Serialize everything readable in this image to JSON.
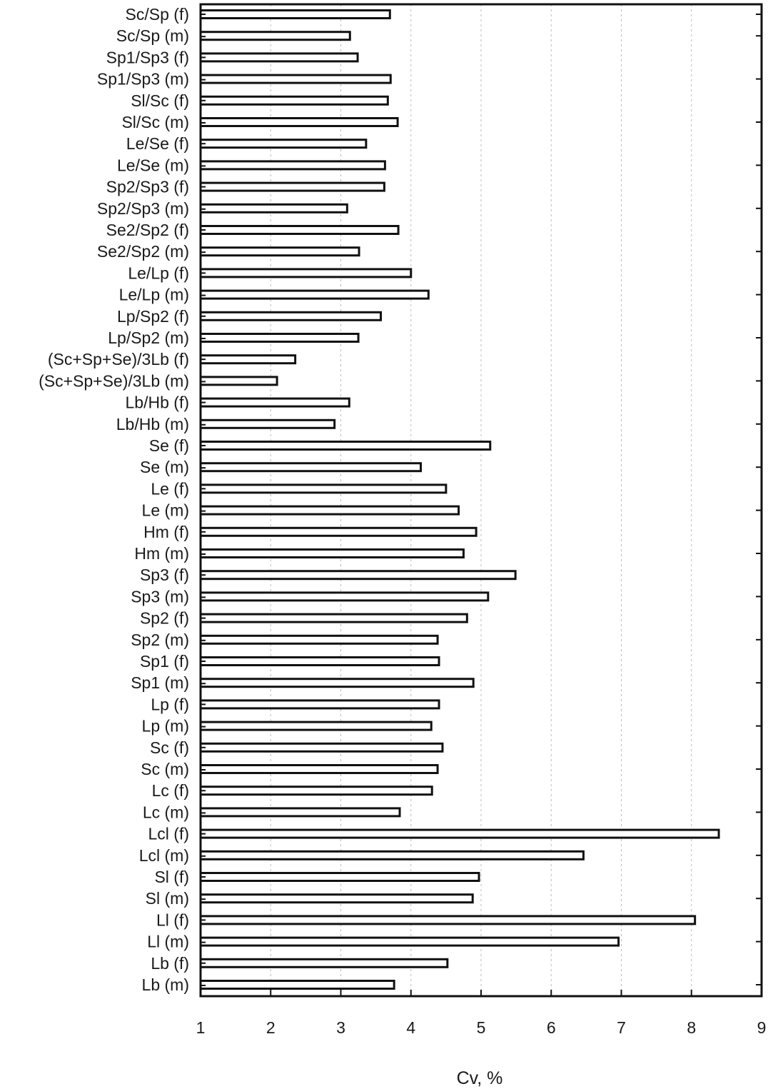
{
  "chart_data": {
    "type": "bar",
    "orientation": "horizontal",
    "xlabel": "Cv, %",
    "ylabel": "",
    "title": "",
    "xlim": [
      1,
      9
    ],
    "xticks": [
      1,
      2,
      3,
      4,
      5,
      6,
      7,
      8,
      9
    ],
    "grid": "vertical dotted",
    "legend": "none",
    "colors": {
      "bar_fill": "#ffffff",
      "bar_stroke": "#111111",
      "grid": "#bbbbbb",
      "text": "#1a1a1a"
    },
    "categories": [
      "Sc/Sp (f)",
      "Sc/Sp (m)",
      "Sp1/Sp3 (f)",
      "Sp1/Sp3 (m)",
      "Sl/Sc (f)",
      "Sl/Sc (m)",
      "Le/Se (f)",
      "Le/Se (m)",
      "Sp2/Sp3 (f)",
      "Sp2/Sp3 (m)",
      "Se2/Sp2 (f)",
      "Se2/Sp2 (m)",
      "Le/Lp (f)",
      "Le/Lp (m)",
      "Lp/Sp2 (f)",
      "Lp/Sp2 (m)",
      "(Sc+Sp+Se)/3Lb (f)",
      "(Sc+Sp+Se)/3Lb (m)",
      "Lb/Hb (f)",
      "Lb/Hb (m)",
      "Se (f)",
      "Se (m)",
      "Le (f)",
      "Le (m)",
      "Hm (f)",
      "Hm (m)",
      "Sp3 (f)",
      "Sp3 (m)",
      "Sp2 (f)",
      "Sp2 (m)",
      "Sp1 (f)",
      "Sp1 (m)",
      "Lp (f)",
      "Lp (m)",
      "Sc (f)",
      "Sc (m)",
      "Lc (f)",
      "Lc (m)",
      "Lcl (f)",
      "Lcl (m)",
      "Sl (f)",
      "Sl (m)",
      "Ll (f)",
      "Ll (m)",
      "Lb (f)",
      "Lb (m)"
    ],
    "values": [
      3.7,
      3.13,
      3.24,
      3.71,
      3.67,
      3.81,
      3.36,
      3.63,
      3.62,
      3.09,
      3.82,
      3.26,
      4.0,
      4.25,
      3.57,
      3.25,
      2.35,
      2.09,
      3.12,
      2.91,
      5.13,
      4.14,
      4.5,
      4.68,
      4.93,
      4.75,
      5.49,
      5.1,
      4.8,
      4.38,
      4.4,
      4.89,
      4.4,
      4.29,
      4.45,
      4.38,
      4.3,
      3.84,
      8.39,
      6.46,
      4.97,
      4.88,
      8.05,
      6.96,
      4.52,
      3.76
    ]
  }
}
